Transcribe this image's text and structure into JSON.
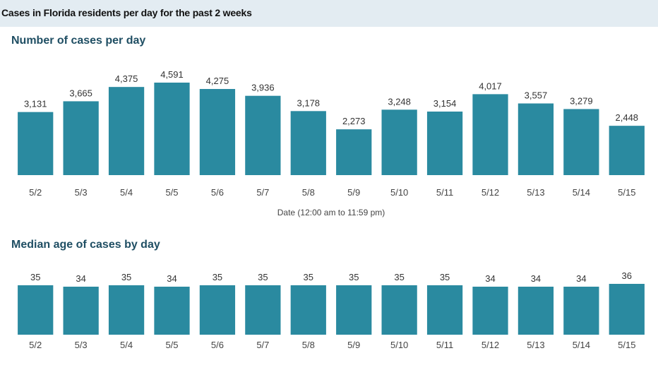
{
  "header": {
    "title": "Cases in Florida residents per day for the past 2 weeks"
  },
  "sections": [
    {
      "title": "Number of cases per day"
    },
    {
      "title": "Median age of cases by day"
    }
  ],
  "colors": {
    "bar": "#2a8aa0",
    "header_bg": "#e3ecf2",
    "title": "#1f4e63"
  },
  "chart_data": [
    {
      "type": "bar",
      "title": "Number of cases per day",
      "xlabel": "Date (12:00 am to 11:59 pm)",
      "ylabel": "",
      "categories": [
        "5/2",
        "5/3",
        "5/4",
        "5/5",
        "5/6",
        "5/7",
        "5/8",
        "5/9",
        "5/10",
        "5/11",
        "5/12",
        "5/13",
        "5/14",
        "5/15"
      ],
      "values": [
        3131,
        3665,
        4375,
        4591,
        4275,
        3936,
        3178,
        2273,
        3248,
        3154,
        4017,
        3557,
        3279,
        2448
      ],
      "data_labels": [
        "3,131",
        "3,665",
        "4,375",
        "4,591",
        "4,275",
        "3,936",
        "3,178",
        "2,273",
        "3,248",
        "3,154",
        "4,017",
        "3,557",
        "3,279",
        "2,448"
      ],
      "ylim": [
        0,
        4591
      ],
      "grid": false
    },
    {
      "type": "bar",
      "title": "Median age of cases by day",
      "xlabel": "",
      "ylabel": "",
      "categories": [
        "5/2",
        "5/3",
        "5/4",
        "5/5",
        "5/6",
        "5/7",
        "5/8",
        "5/9",
        "5/10",
        "5/11",
        "5/12",
        "5/13",
        "5/14",
        "5/15"
      ],
      "values": [
        35,
        34,
        35,
        34,
        35,
        35,
        35,
        35,
        35,
        35,
        34,
        34,
        34,
        36
      ],
      "data_labels": [
        "35",
        "34",
        "35",
        "34",
        "35",
        "35",
        "35",
        "35",
        "35",
        "35",
        "34",
        "34",
        "34",
        "36"
      ],
      "ylim": [
        0,
        36
      ],
      "grid": false
    }
  ]
}
